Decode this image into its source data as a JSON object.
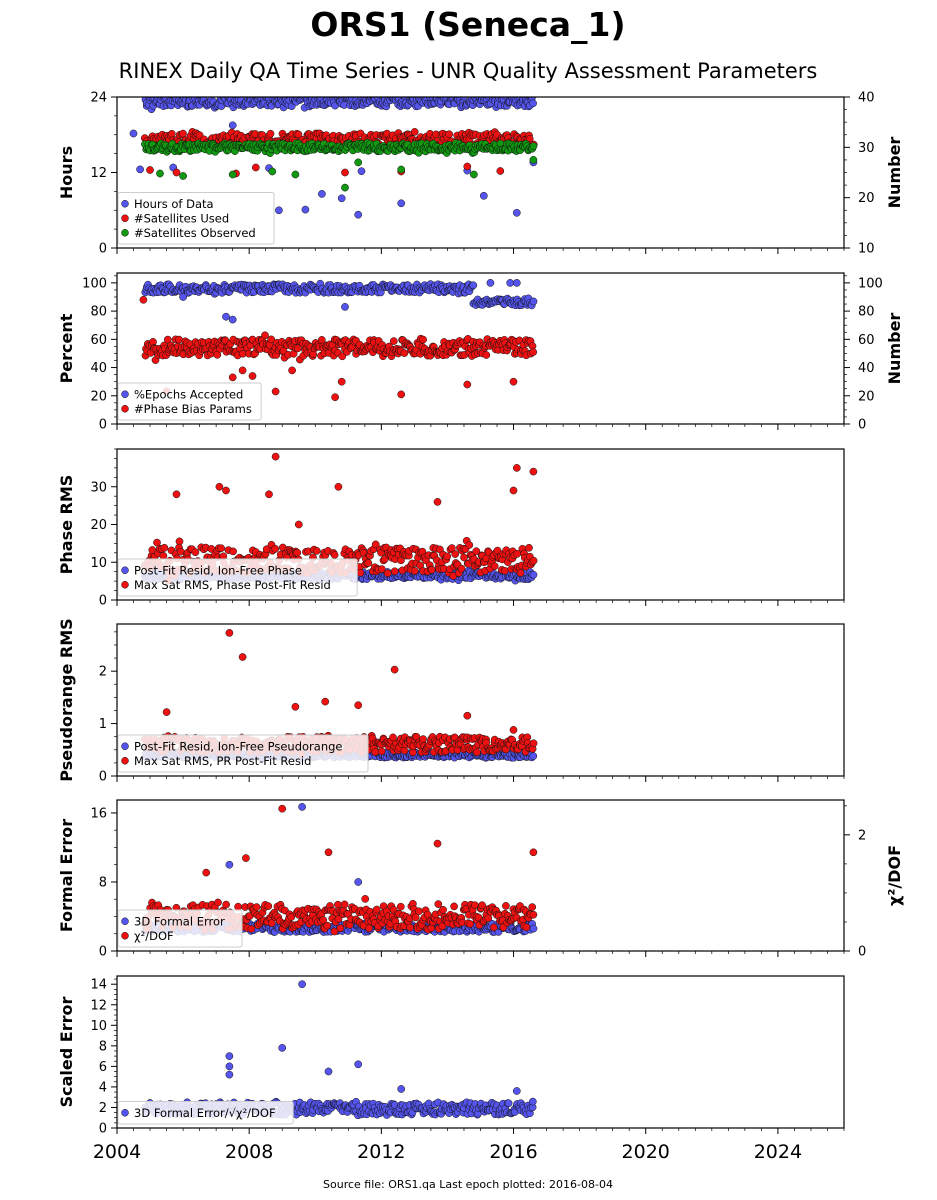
{
  "header": {
    "title": "ORS1 (Seneca_1)",
    "subtitle": "RINEX Daily QA Time Series - UNR Quality Assessment Parameters"
  },
  "footer": {
    "source": "Source file: ORS1.qa Last epoch plotted: 2016-08-04"
  },
  "colors": {
    "blue": "#5555ee",
    "red": "#ee1111",
    "green": "#119911",
    "edge": "#111111"
  },
  "chart_data": [
    {
      "type": "scatter",
      "ylabel": "Hours",
      "ylabel_right": "Number",
      "xlim": [
        2004,
        2026
      ],
      "ylim": [
        0,
        24
      ],
      "yticks": [
        0,
        12,
        24
      ],
      "ylim_right": [
        10,
        40
      ],
      "yticks_right": [
        10,
        20,
        30,
        40
      ],
      "legend_position": "lower-left",
      "series": [
        {
          "name": "Hours of Data",
          "color": "blue",
          "axis": "left",
          "band": [
            22.5,
            24.2
          ],
          "scatter": 1.0,
          "outliers": [
            [
              2004.5,
              18.2
            ],
            [
              2004.7,
              12.5
            ],
            [
              2005.7,
              12.8
            ],
            [
              2006.4,
              17.0
            ],
            [
              2007.5,
              19.5
            ],
            [
              2008.6,
              12.7
            ],
            [
              2008.9,
              6.0
            ],
            [
              2009.7,
              6.1
            ],
            [
              2010.2,
              8.6
            ],
            [
              2010.8,
              7.9
            ],
            [
              2011.3,
              5.3
            ],
            [
              2011.4,
              12.2
            ],
            [
              2012.6,
              7.1
            ],
            [
              2014.6,
              12.3
            ],
            [
              2015.1,
              8.3
            ],
            [
              2016.1,
              5.6
            ],
            [
              2016.6,
              13.6
            ]
          ]
        },
        {
          "name": "#Satellites Used",
          "color": "red",
          "axis": "right",
          "band": [
            30.0,
            32.8
          ],
          "scatter": 0.7,
          "outliers": [
            [
              2005.0,
              25.5
            ],
            [
              2005.8,
              25.0
            ],
            [
              2007.6,
              24.8
            ],
            [
              2008.2,
              26.0
            ],
            [
              2010.9,
              25.0
            ],
            [
              2012.6,
              25.2
            ],
            [
              2014.6,
              26.2
            ],
            [
              2015.6,
              25.3
            ]
          ]
        },
        {
          "name": "#Satellites Observed",
          "color": "green",
          "axis": "right",
          "band": [
            29.2,
            30.8
          ],
          "scatter": 0.8,
          "outliers": [
            [
              2005.3,
              24.8
            ],
            [
              2006.0,
              24.3
            ],
            [
              2007.5,
              24.6
            ],
            [
              2008.7,
              25.2
            ],
            [
              2009.4,
              24.6
            ],
            [
              2010.9,
              22.0
            ],
            [
              2011.3,
              27.0
            ],
            [
              2012.6,
              25.6
            ],
            [
              2014.8,
              24.6
            ],
            [
              2016.6,
              27.5
            ]
          ]
        }
      ]
    },
    {
      "type": "scatter",
      "ylabel": "Percent",
      "ylabel_right": "Number",
      "xlim": [
        2004,
        2026
      ],
      "ylim": [
        0,
        107
      ],
      "yticks": [
        0,
        20,
        40,
        60,
        80,
        100
      ],
      "ylim_right": [
        0,
        107
      ],
      "yticks_right": [
        0,
        20,
        40,
        60,
        80,
        100
      ],
      "legend_position": "lower-left",
      "series": [
        {
          "name": "%Epochs Accepted",
          "color": "blue",
          "axis": "left",
          "band_segments": [
            [
              2004.8,
              2014.8,
              93,
              99
            ],
            [
              2014.8,
              2016.6,
              84,
              89
            ]
          ],
          "scatter": 1.5,
          "outliers": [
            [
              2006.0,
              90
            ],
            [
              2007.3,
              76
            ],
            [
              2007.5,
              74
            ],
            [
              2010.9,
              83
            ],
            [
              2015.3,
              100
            ],
            [
              2015.9,
              100
            ],
            [
              2016.1,
              100
            ]
          ]
        },
        {
          "name": "#Phase Bias Params",
          "color": "red",
          "axis": "right",
          "band": [
            48,
            60
          ],
          "scatter": 5.0,
          "outliers": [
            [
              2004.8,
              88
            ],
            [
              2005.5,
              23
            ],
            [
              2007.5,
              33
            ],
            [
              2007.8,
              38
            ],
            [
              2008.1,
              34
            ],
            [
              2008.8,
              23
            ],
            [
              2009.3,
              38
            ],
            [
              2010.6,
              19
            ],
            [
              2010.8,
              30
            ],
            [
              2012.6,
              21
            ],
            [
              2014.6,
              28
            ],
            [
              2016.0,
              30
            ]
          ]
        }
      ]
    },
    {
      "type": "scatter",
      "ylabel": "Phase RMS",
      "xlim": [
        2004,
        2026
      ],
      "ylim": [
        0,
        40
      ],
      "yticks": [
        0,
        10,
        20,
        30
      ],
      "legend_position": "lower-left",
      "series": [
        {
          "name": "Post-Fit Resid, Ion-Free Phase",
          "color": "blue",
          "axis": "left",
          "band": [
            5.5,
            7.5
          ],
          "scatter": 0.6,
          "outliers": []
        },
        {
          "name": "Max Sat RMS, Phase Post-Fit Resid",
          "color": "red",
          "axis": "left",
          "band": [
            7,
            14
          ],
          "scatter": 4.0,
          "outliers": [
            [
              2005.8,
              28
            ],
            [
              2007.1,
              30
            ],
            [
              2007.3,
              29
            ],
            [
              2008.8,
              38
            ],
            [
              2008.6,
              28
            ],
            [
              2009.5,
              20
            ],
            [
              2010.7,
              30
            ],
            [
              2013.7,
              26
            ],
            [
              2016.0,
              29
            ],
            [
              2016.1,
              35
            ],
            [
              2016.6,
              34
            ]
          ]
        }
      ]
    },
    {
      "type": "scatter",
      "ylabel": "Pseudorange RMS",
      "xlim": [
        2004,
        2026
      ],
      "ylim": [
        0,
        2.9
      ],
      "yticks": [
        0,
        1,
        2
      ],
      "legend_position": "lower-left",
      "series": [
        {
          "name": "Post-Fit Resid, Ion-Free Pseudorange",
          "color": "blue",
          "axis": "left",
          "band": [
            0.35,
            0.45
          ],
          "scatter": 0.03,
          "outliers": []
        },
        {
          "name": "Max Sat RMS, PR Post-Fit Resid",
          "color": "red",
          "axis": "left",
          "band": [
            0.45,
            0.75
          ],
          "scatter": 0.1,
          "outliers": [
            [
              2005.5,
              1.22
            ],
            [
              2007.4,
              2.73
            ],
            [
              2007.8,
              2.27
            ],
            [
              2009.4,
              1.32
            ],
            [
              2010.3,
              1.42
            ],
            [
              2011.3,
              1.35
            ],
            [
              2012.4,
              2.03
            ],
            [
              2014.6,
              1.15
            ],
            [
              2016.0,
              0.88
            ]
          ]
        }
      ]
    },
    {
      "type": "scatter",
      "ylabel": "Formal Error",
      "ylabel_right": "χ²/DOF",
      "xlim": [
        2004,
        2026
      ],
      "ylim": [
        0,
        17.5
      ],
      "yticks": [
        0,
        8,
        16
      ],
      "ylim_right": [
        0,
        2.6
      ],
      "yticks_right": [
        0,
        2
      ],
      "legend_position": "lower-left",
      "series": [
        {
          "name": "3D Formal Error",
          "color": "blue",
          "axis": "left",
          "band": [
            2.2,
            3.2
          ],
          "scatter": 0.2,
          "outliers": [
            [
              2007.4,
              10.0
            ],
            [
              2009.6,
              16.7
            ],
            [
              2011.3,
              8.0
            ]
          ]
        },
        {
          "name": "χ²/DOF",
          "color": "red",
          "axis": "right",
          "band": [
            0.38,
            0.8
          ],
          "scatter": 0.12,
          "outliers": [
            [
              2006.7,
              1.35
            ],
            [
              2007.9,
              1.6
            ],
            [
              2009.0,
              2.45
            ],
            [
              2010.4,
              1.7
            ],
            [
              2013.7,
              1.85
            ],
            [
              2016.6,
              1.7
            ]
          ]
        }
      ]
    },
    {
      "type": "scatter",
      "ylabel": "Scaled Error",
      "xlim": [
        2004,
        2026
      ],
      "xticks": [
        2004,
        2008,
        2012,
        2016,
        2020,
        2024
      ],
      "ylim": [
        0,
        14.8
      ],
      "yticks": [
        0,
        2,
        4,
        6,
        8,
        10,
        12,
        14
      ],
      "legend_position": "lower-left",
      "series": [
        {
          "name": "3D Formal Error/√χ²/DOF",
          "color": "blue",
          "axis": "left",
          "band": [
            1.3,
            2.5
          ],
          "scatter": 0.3,
          "outliers": [
            [
              2007.4,
              7.0
            ],
            [
              2007.4,
              6.0
            ],
            [
              2007.4,
              5.2
            ],
            [
              2009.0,
              7.8
            ],
            [
              2009.6,
              14.0
            ],
            [
              2010.4,
              5.5
            ],
            [
              2011.3,
              6.2
            ],
            [
              2012.6,
              3.8
            ],
            [
              2016.1,
              3.6
            ]
          ]
        }
      ]
    }
  ]
}
